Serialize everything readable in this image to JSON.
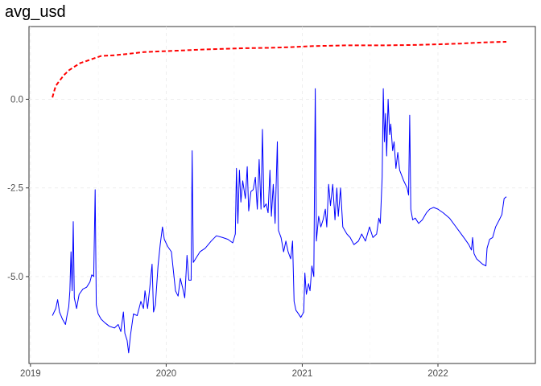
{
  "chart_data": {
    "type": "line",
    "title": "avg_usd",
    "xlabel": "",
    "ylabel": "",
    "grid": true,
    "legend": "none",
    "x_ticks": [
      {
        "label": "2019",
        "value": "2019-01-01"
      },
      {
        "label": "2020",
        "value": "2020-01-01"
      },
      {
        "label": "2021",
        "value": "2021-01-01"
      },
      {
        "label": "2022",
        "value": "2022-01-01"
      }
    ],
    "y_ticks": [
      {
        "label": "0.0",
        "value": 0
      },
      {
        "label": "-2.5",
        "value": -2.5
      },
      {
        "label": "-5.0",
        "value": -5
      }
    ],
    "xlim": [
      "2018-12-28",
      "2022-09-20"
    ],
    "ylim": [
      -7.45,
      2.05
    ],
    "series": [
      {
        "color": "#0000ff",
        "style": "solid",
        "points": [
          [
            "2019-03-01",
            -6.1
          ],
          [
            "2019-03-10",
            -5.9
          ],
          [
            "2019-03-15",
            -5.65
          ],
          [
            "2019-03-20",
            -6.0
          ],
          [
            "2019-03-28",
            -6.2
          ],
          [
            "2019-04-05",
            -6.35
          ],
          [
            "2019-04-10",
            -6.05
          ],
          [
            "2019-04-14",
            -5.85
          ],
          [
            "2019-04-17",
            -5.4
          ],
          [
            "2019-04-20",
            -4.3
          ],
          [
            "2019-04-23",
            -5.4
          ],
          [
            "2019-04-26",
            -3.45
          ],
          [
            "2019-04-29",
            -5.6
          ],
          [
            "2019-05-05",
            -5.9
          ],
          [
            "2019-05-12",
            -5.5
          ],
          [
            "2019-05-22",
            -5.35
          ],
          [
            "2019-06-01",
            -5.3
          ],
          [
            "2019-06-10",
            -5.15
          ],
          [
            "2019-06-15",
            -4.95
          ],
          [
            "2019-06-20",
            -5.0
          ],
          [
            "2019-06-24",
            -2.55
          ],
          [
            "2019-06-27",
            -5.8
          ],
          [
            "2019-07-02",
            -6.05
          ],
          [
            "2019-07-10",
            -6.2
          ],
          [
            "2019-07-20",
            -6.3
          ],
          [
            "2019-08-01",
            -6.4
          ],
          [
            "2019-08-15",
            -6.45
          ],
          [
            "2019-08-25",
            -6.35
          ],
          [
            "2019-09-01",
            -6.55
          ],
          [
            "2019-09-08",
            -6.0
          ],
          [
            "2019-09-12",
            -6.6
          ],
          [
            "2019-09-18",
            -6.8
          ],
          [
            "2019-09-22",
            -7.15
          ],
          [
            "2019-09-27",
            -6.65
          ],
          [
            "2019-10-05",
            -6.05
          ],
          [
            "2019-10-15",
            -6.1
          ],
          [
            "2019-10-25",
            -5.7
          ],
          [
            "2019-11-01",
            -5.9
          ],
          [
            "2019-11-05",
            -5.4
          ],
          [
            "2019-11-12",
            -5.9
          ],
          [
            "2019-11-18",
            -5.3
          ],
          [
            "2019-11-24",
            -4.65
          ],
          [
            "2019-11-28",
            -6.0
          ],
          [
            "2019-12-03",
            -5.8
          ],
          [
            "2019-12-10",
            -4.7
          ],
          [
            "2019-12-16",
            -4.1
          ],
          [
            "2019-12-22",
            -3.6
          ],
          [
            "2019-12-27",
            -3.95
          ],
          [
            "2020-01-05",
            -4.15
          ],
          [
            "2020-01-15",
            -4.3
          ],
          [
            "2020-01-20",
            -4.8
          ],
          [
            "2020-01-26",
            -5.4
          ],
          [
            "2020-02-02",
            -5.55
          ],
          [
            "2020-02-08",
            -5.05
          ],
          [
            "2020-02-14",
            -5.3
          ],
          [
            "2020-02-20",
            -5.6
          ],
          [
            "2020-02-26",
            -4.4
          ],
          [
            "2020-03-02",
            -5.1
          ],
          [
            "2020-03-08",
            -5.1
          ],
          [
            "2020-03-11",
            -1.45
          ],
          [
            "2020-03-14",
            -4.6
          ],
          [
            "2020-03-20",
            -4.5
          ],
          [
            "2020-04-01",
            -4.3
          ],
          [
            "2020-04-15",
            -4.2
          ],
          [
            "2020-05-01",
            -4.0
          ],
          [
            "2020-05-15",
            -3.85
          ],
          [
            "2020-06-01",
            -3.9
          ],
          [
            "2020-06-15",
            -3.95
          ],
          [
            "2020-06-28",
            -4.05
          ],
          [
            "2020-07-05",
            -3.8
          ],
          [
            "2020-07-08",
            -1.95
          ],
          [
            "2020-07-12",
            -3.5
          ],
          [
            "2020-07-16",
            -2.0
          ],
          [
            "2020-07-20",
            -2.9
          ],
          [
            "2020-07-25",
            -2.3
          ],
          [
            "2020-08-01",
            -2.8
          ],
          [
            "2020-08-06",
            -1.9
          ],
          [
            "2020-08-10",
            -3.15
          ],
          [
            "2020-08-16",
            -2.6
          ],
          [
            "2020-08-22",
            -2.55
          ],
          [
            "2020-08-28",
            -2.2
          ],
          [
            "2020-09-02",
            -3.1
          ],
          [
            "2020-09-07",
            -1.7
          ],
          [
            "2020-09-12",
            -3.1
          ],
          [
            "2020-09-16",
            -0.85
          ],
          [
            "2020-09-20",
            -3.05
          ],
          [
            "2020-09-26",
            -2.95
          ],
          [
            "2020-10-01",
            -3.2
          ],
          [
            "2020-10-06",
            -2.0
          ],
          [
            "2020-10-10",
            -3.3
          ],
          [
            "2020-10-15",
            -2.4
          ],
          [
            "2020-10-20",
            -3.5
          ],
          [
            "2020-10-26",
            -1.2
          ],
          [
            "2020-10-29",
            -3.7
          ],
          [
            "2020-11-05",
            -3.9
          ],
          [
            "2020-11-12",
            -4.3
          ],
          [
            "2020-11-18",
            -4.0
          ],
          [
            "2020-11-24",
            -4.3
          ],
          [
            "2020-12-01",
            -4.5
          ],
          [
            "2020-12-06",
            -4.0
          ],
          [
            "2020-12-10",
            -5.7
          ],
          [
            "2020-12-15",
            -5.95
          ],
          [
            "2020-12-22",
            -6.05
          ],
          [
            "2020-12-28",
            -6.15
          ],
          [
            "2021-01-05",
            -6.0
          ],
          [
            "2021-01-08",
            -4.9
          ],
          [
            "2021-01-12",
            -5.5
          ],
          [
            "2021-01-18",
            -5.2
          ],
          [
            "2021-01-22",
            -5.4
          ],
          [
            "2021-01-27",
            -4.7
          ],
          [
            "2021-02-01",
            -5.0
          ],
          [
            "2021-02-05",
            0.3
          ],
          [
            "2021-02-08",
            -4.0
          ],
          [
            "2021-02-14",
            -3.3
          ],
          [
            "2021-02-20",
            -3.6
          ],
          [
            "2021-02-26",
            -3.4
          ],
          [
            "2021-03-04",
            -3.1
          ],
          [
            "2021-03-08",
            -3.6
          ],
          [
            "2021-03-13",
            -2.4
          ],
          [
            "2021-03-18",
            -3.0
          ],
          [
            "2021-03-24",
            -2.4
          ],
          [
            "2021-03-30",
            -3.4
          ],
          [
            "2021-04-04",
            -2.5
          ],
          [
            "2021-04-08",
            -3.3
          ],
          [
            "2021-04-14",
            -2.5
          ],
          [
            "2021-04-20",
            -3.6
          ],
          [
            "2021-05-01",
            -3.8
          ],
          [
            "2021-05-10",
            -3.9
          ],
          [
            "2021-05-20",
            -4.1
          ],
          [
            "2021-06-01",
            -4.0
          ],
          [
            "2021-06-10",
            -3.8
          ],
          [
            "2021-06-20",
            -4.0
          ],
          [
            "2021-07-01",
            -3.6
          ],
          [
            "2021-07-10",
            -3.9
          ],
          [
            "2021-07-20",
            -3.8
          ],
          [
            "2021-07-26",
            -3.35
          ],
          [
            "2021-07-30",
            -3.5
          ],
          [
            "2021-08-04",
            -2.2
          ],
          [
            "2021-08-07",
            0.3
          ],
          [
            "2021-08-10",
            -1.2
          ],
          [
            "2021-08-13",
            -0.4
          ],
          [
            "2021-08-16",
            -1.6
          ],
          [
            "2021-08-20",
            0.0
          ],
          [
            "2021-08-24",
            -1.0
          ],
          [
            "2021-08-27",
            -0.7
          ],
          [
            "2021-09-01",
            -1.45
          ],
          [
            "2021-09-05",
            -1.2
          ],
          [
            "2021-09-10",
            -1.95
          ],
          [
            "2021-09-15",
            -1.5
          ],
          [
            "2021-09-20",
            -2.0
          ],
          [
            "2021-10-01",
            -2.3
          ],
          [
            "2021-10-10",
            -2.5
          ],
          [
            "2021-10-14",
            -2.7
          ],
          [
            "2021-10-17",
            -0.45
          ],
          [
            "2021-10-20",
            -3.1
          ],
          [
            "2021-10-25",
            -3.4
          ],
          [
            "2021-11-01",
            -3.35
          ],
          [
            "2021-11-10",
            -3.5
          ],
          [
            "2021-11-20",
            -3.4
          ],
          [
            "2021-12-01",
            -3.2
          ],
          [
            "2021-12-10",
            -3.1
          ],
          [
            "2021-12-20",
            -3.05
          ],
          [
            "2022-01-01",
            -3.1
          ],
          [
            "2022-01-15",
            -3.2
          ],
          [
            "2022-02-01",
            -3.35
          ],
          [
            "2022-02-15",
            -3.55
          ],
          [
            "2022-03-01",
            -3.75
          ],
          [
            "2022-03-15",
            -3.95
          ],
          [
            "2022-03-25",
            -4.1
          ],
          [
            "2022-04-01",
            -4.25
          ],
          [
            "2022-04-04",
            -3.9
          ],
          [
            "2022-04-08",
            -4.35
          ],
          [
            "2022-04-15",
            -4.5
          ],
          [
            "2022-05-01",
            -4.65
          ],
          [
            "2022-05-10",
            -4.7
          ],
          [
            "2022-05-13",
            -4.2
          ],
          [
            "2022-05-20",
            -3.95
          ],
          [
            "2022-05-28",
            -3.9
          ],
          [
            "2022-06-05",
            -3.6
          ],
          [
            "2022-06-15",
            -3.4
          ],
          [
            "2022-06-22",
            -3.25
          ],
          [
            "2022-06-28",
            -2.8
          ],
          [
            "2022-07-04",
            -2.75
          ]
        ]
      },
      {
        "color": "#ff0000",
        "style": "dashed",
        "points": [
          [
            "2019-03-01",
            0.05
          ],
          [
            "2019-03-05",
            0.2
          ],
          [
            "2019-03-10",
            0.38
          ],
          [
            "2019-03-20",
            0.52
          ],
          [
            "2019-04-01",
            0.68
          ],
          [
            "2019-04-15",
            0.82
          ],
          [
            "2019-05-01",
            0.93
          ],
          [
            "2019-05-15",
            1.02
          ],
          [
            "2019-06-01",
            1.08
          ],
          [
            "2019-06-20",
            1.15
          ],
          [
            "2019-07-10",
            1.22
          ],
          [
            "2019-08-15",
            1.24
          ],
          [
            "2019-09-20",
            1.28
          ],
          [
            "2019-11-01",
            1.33
          ],
          [
            "2019-12-15",
            1.35
          ],
          [
            "2020-02-01",
            1.37
          ],
          [
            "2020-04-01",
            1.4
          ],
          [
            "2020-06-01",
            1.42
          ],
          [
            "2020-08-01",
            1.44
          ],
          [
            "2020-10-01",
            1.45
          ],
          [
            "2020-12-01",
            1.47
          ],
          [
            "2021-02-01",
            1.5
          ],
          [
            "2021-05-01",
            1.52
          ],
          [
            "2021-08-01",
            1.52
          ],
          [
            "2021-11-01",
            1.53
          ],
          [
            "2022-01-01",
            1.55
          ],
          [
            "2022-03-01",
            1.57
          ],
          [
            "2022-05-01",
            1.6
          ],
          [
            "2022-07-01",
            1.62
          ],
          [
            "2022-07-04",
            1.62
          ]
        ]
      }
    ]
  }
}
